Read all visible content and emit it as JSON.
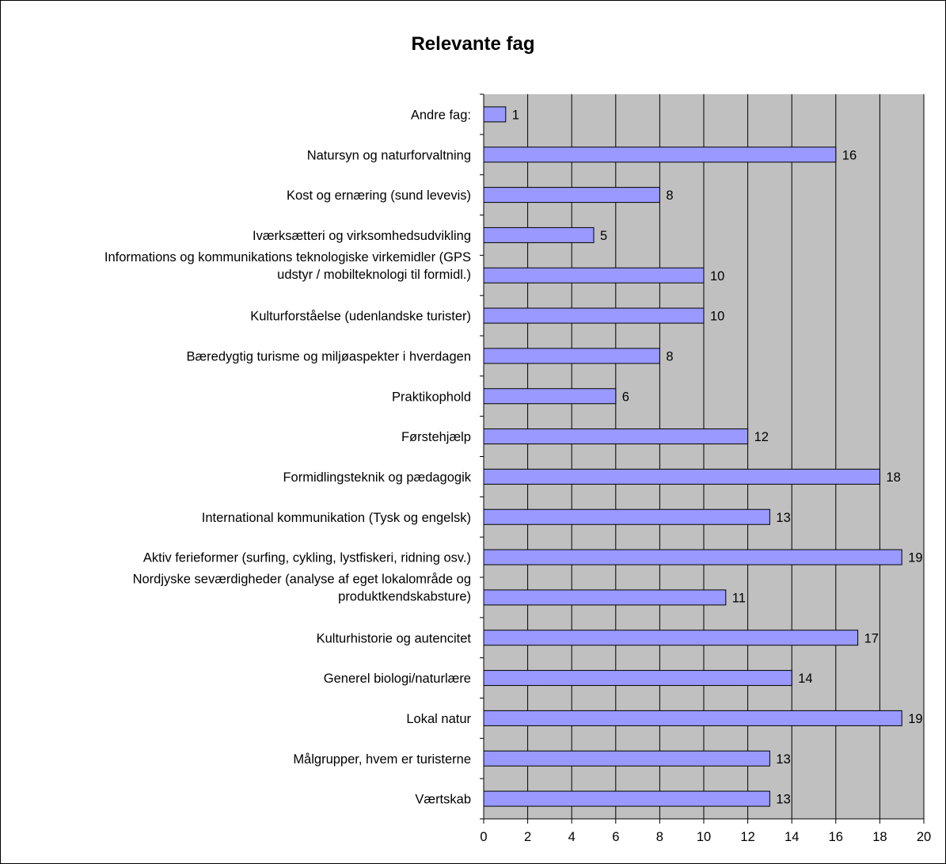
{
  "chart_data": {
    "type": "bar",
    "orientation": "horizontal",
    "title": "Relevante fag",
    "xlabel": "",
    "ylabel": "",
    "xlim": [
      0,
      20
    ],
    "x_ticks": [
      0,
      2,
      4,
      6,
      8,
      10,
      12,
      14,
      16,
      18,
      20
    ],
    "grid": true,
    "legend": "none",
    "data_labels": true,
    "categories": [
      "Andre fag:",
      "Natursyn og naturforvaltning",
      "Kost og ernæring (sund levevis)",
      "Iværksætteri og virksomhedsudvikling",
      "Informations og kommunikations teknologiske virkemidler (GPS udstyr / mobilteknologi til formidl.)",
      "Kulturforståelse (udenlandske turister)",
      "Bæredygtig turisme og miljøaspekter i hverdagen",
      "Praktikophold",
      "Førstehjælp",
      "Formidlingsteknik og pædagogik",
      "International kommunikation (Tysk og engelsk)",
      "Aktiv ferieformer (surfing, cykling, lystfiskeri, ridning osv.)",
      "Nordjyske seværdigheder (analyse af eget lokalområde og produktkendskabsture)",
      "Kulturhistorie og autencitet",
      "Generel biologi/naturlære",
      "Lokal natur",
      "Målgrupper, hvem er turisterne",
      "Værtskab"
    ],
    "label_lines": [
      [
        "Andre fag:"
      ],
      [
        "Natursyn og naturforvaltning"
      ],
      [
        "Kost og ernæring (sund levevis)"
      ],
      [
        "Iværksætteri og virksomhedsudvikling"
      ],
      [
        "Informations og kommunikations teknologiske virkemidler (GPS",
        "udstyr / mobilteknologi til formidl.)"
      ],
      [
        "Kulturforståelse (udenlandske turister)"
      ],
      [
        "Bæredygtig turisme og miljøaspekter i hverdagen"
      ],
      [
        "Praktikophold"
      ],
      [
        "Førstehjælp"
      ],
      [
        "Formidlingsteknik og pædagogik"
      ],
      [
        "International kommunikation (Tysk og engelsk)"
      ],
      [
        "Aktiv ferieformer (surfing, cykling, lystfiskeri, ridning osv.)"
      ],
      [
        "Nordjyske seværdigheder (analyse af eget lokalområde og",
        "produktkendskabsture)"
      ],
      [
        "Kulturhistorie og autencitet"
      ],
      [
        "Generel biologi/naturlære"
      ],
      [
        "Lokal natur"
      ],
      [
        "Målgrupper, hvem er turisterne"
      ],
      [
        "Værtskab"
      ]
    ],
    "values": [
      1,
      16,
      8,
      5,
      10,
      10,
      8,
      6,
      12,
      18,
      13,
      19,
      11,
      17,
      14,
      19,
      13,
      13
    ],
    "colors": {
      "plot_background": "#c0c0c0",
      "bar_fill": "#9999ff",
      "bar_stroke": "#000000",
      "grid": "#000000"
    }
  }
}
